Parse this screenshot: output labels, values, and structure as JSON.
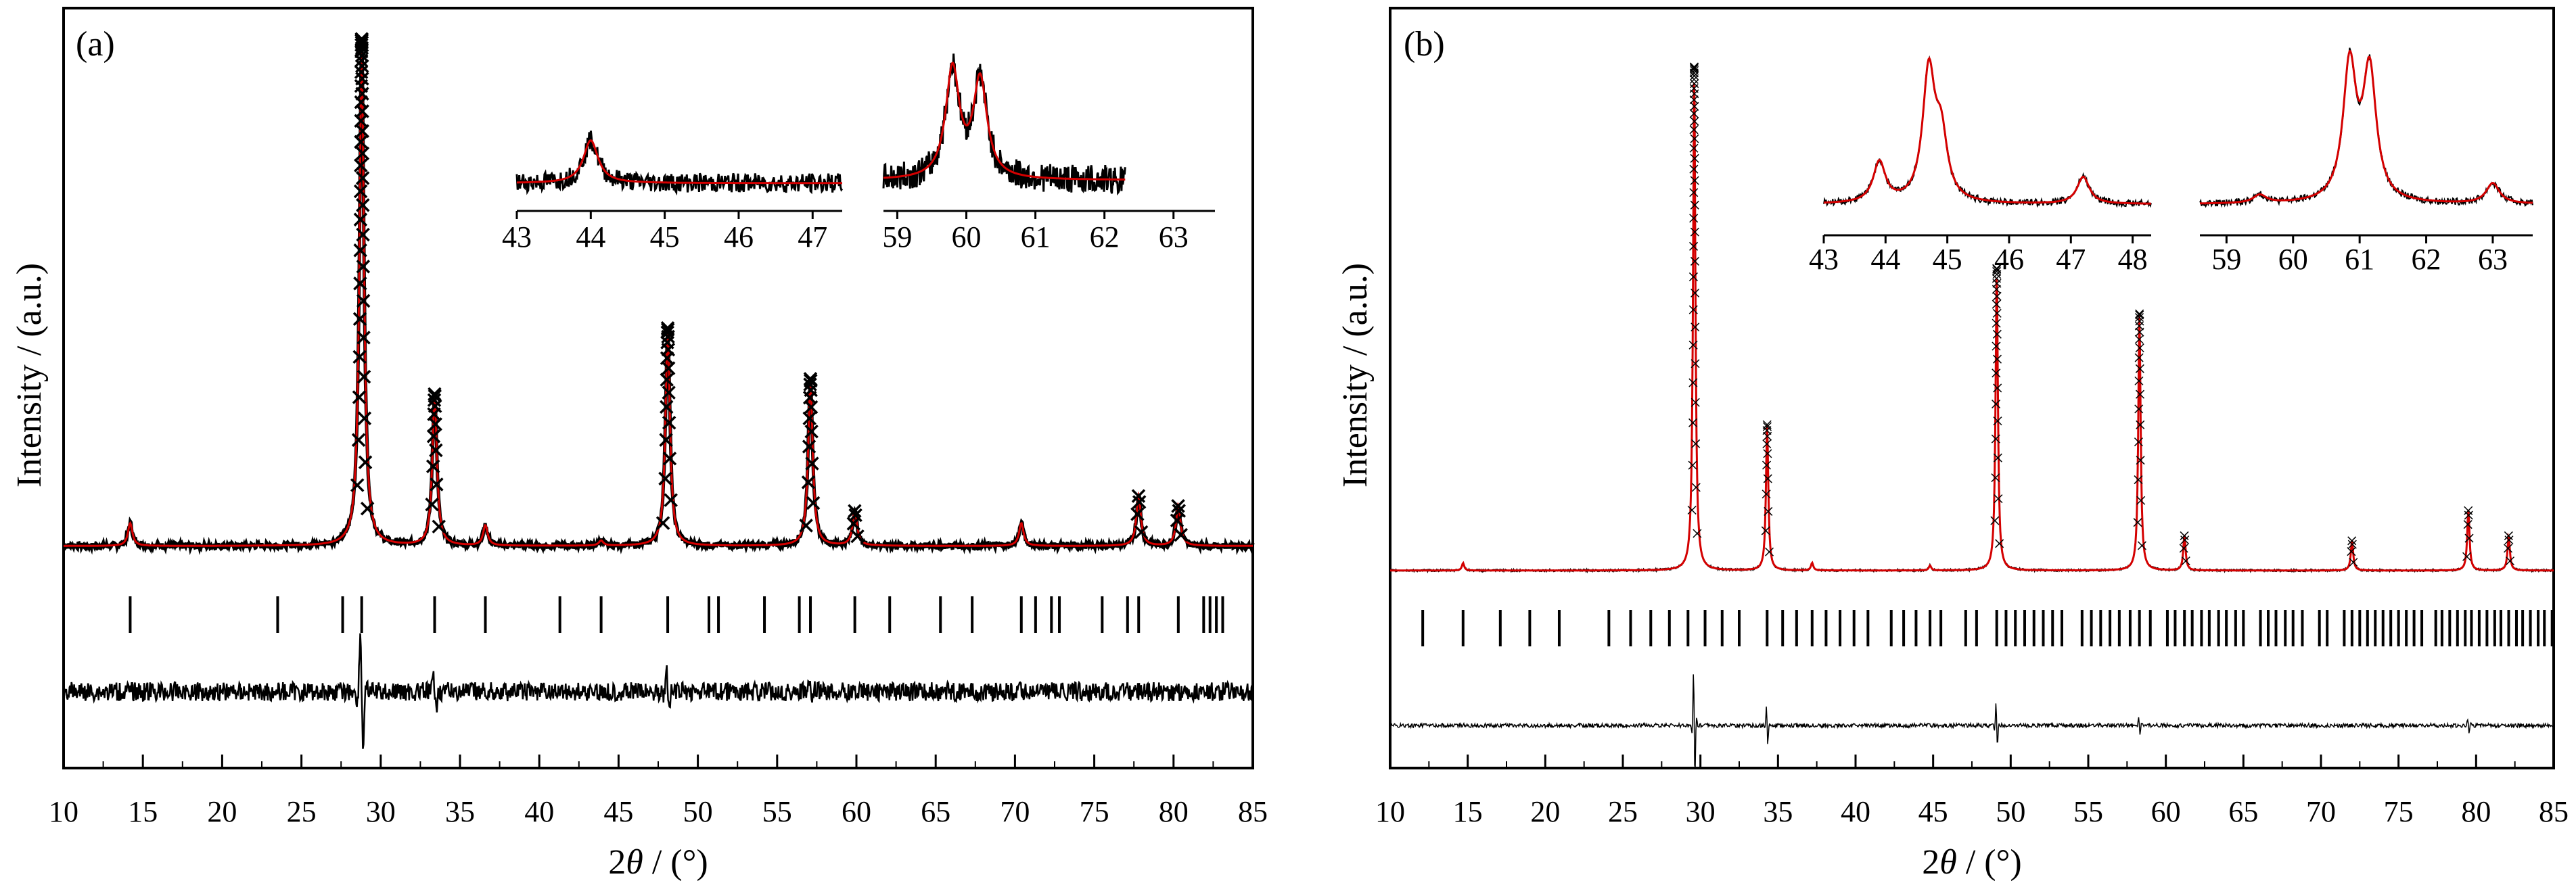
{
  "figure": {
    "panels": [
      {
        "label": "(a)",
        "xlabel_prefix": "2",
        "xlabel_theta": "θ",
        "xlabel_suffix": " / (°)",
        "ylabel": "Intensity / (a.u.)"
      },
      {
        "label": "(b)",
        "xlabel_prefix": "2",
        "xlabel_theta": "θ",
        "xlabel_suffix": " / (°)",
        "ylabel": "Intensity / (a.u.)"
      }
    ]
  },
  "colors": {
    "observed": "#000000",
    "calculated": "#d40000",
    "difference": "#000000",
    "bragg": "#000000"
  },
  "chart_data": [
    {
      "type": "line",
      "panel": "(a)",
      "xlabel": "2θ / (°)",
      "ylabel": "Intensity / (a.u.)",
      "xlim": [
        10,
        85
      ],
      "x_ticks": [
        10,
        15,
        20,
        25,
        30,
        35,
        40,
        45,
        50,
        55,
        60,
        65,
        70,
        75,
        80,
        85
      ],
      "observed_marker": "x",
      "background": 0.03,
      "peaks": [
        {
          "x": 14.2,
          "y": 0.045
        },
        {
          "x": 28.8,
          "y": 1.0
        },
        {
          "x": 33.4,
          "y": 0.3
        },
        {
          "x": 36.6,
          "y": 0.04
        },
        {
          "x": 43.9,
          "y": 0.01
        },
        {
          "x": 48.1,
          "y": 0.43
        },
        {
          "x": 57.1,
          "y": 0.33
        },
        {
          "x": 59.9,
          "y": 0.07
        },
        {
          "x": 70.4,
          "y": 0.045
        },
        {
          "x": 77.8,
          "y": 0.1
        },
        {
          "x": 80.3,
          "y": 0.08
        }
      ],
      "bragg_positions": [
        14.2,
        23.5,
        27.6,
        28.8,
        33.4,
        36.6,
        41.3,
        43.9,
        48.1,
        50.7,
        51.3,
        54.2,
        56.4,
        57.1,
        59.9,
        62.1,
        65.3,
        67.3,
        70.4,
        71.3,
        72.3,
        72.8,
        75.5,
        77.1,
        77.8,
        80.3,
        81.9,
        82.3,
        82.7,
        83.1
      ],
      "difference_spikes": [
        {
          "x": 28.8,
          "amp": 1.0
        },
        {
          "x": 33.4,
          "amp": 0.3
        },
        {
          "x": 48.1,
          "amp": 0.35
        },
        {
          "x": 57.1,
          "amp": 0.15
        }
      ],
      "insets": [
        {
          "xlim": [
            43,
            47.4
          ],
          "x_ticks": [
            43,
            44,
            45,
            46,
            47
          ],
          "peaks": [
            {
              "x": 44.0,
              "y": 0.55
            }
          ]
        },
        {
          "xlim": [
            58.8,
            63.6
          ],
          "x_ticks": [
            59,
            60,
            61,
            62,
            63
          ],
          "peaks": [
            {
              "x": 59.8,
              "y": 0.95
            },
            {
              "x": 60.2,
              "y": 0.85
            }
          ],
          "data_end": 62.3
        }
      ]
    },
    {
      "type": "line",
      "panel": "(b)",
      "xlabel": "2θ / (°)",
      "ylabel": "Intensity / (a.u.)",
      "xlim": [
        10,
        85
      ],
      "x_ticks": [
        10,
        15,
        20,
        25,
        30,
        35,
        40,
        45,
        50,
        55,
        60,
        65,
        70,
        75,
        80,
        85
      ],
      "observed_marker": "x",
      "background": 0.015,
      "peaks": [
        {
          "x": 14.7,
          "y": 0.015
        },
        {
          "x": 29.6,
          "y": 1.0
        },
        {
          "x": 34.3,
          "y": 0.29
        },
        {
          "x": 37.2,
          "y": 0.015
        },
        {
          "x": 44.8,
          "y": 0.01
        },
        {
          "x": 49.1,
          "y": 0.6
        },
        {
          "x": 58.3,
          "y": 0.51
        },
        {
          "x": 61.2,
          "y": 0.07
        },
        {
          "x": 72.0,
          "y": 0.06
        },
        {
          "x": 79.5,
          "y": 0.12
        },
        {
          "x": 82.1,
          "y": 0.07
        }
      ],
      "bragg_positions": [
        12.1,
        14.7,
        17.1,
        19.0,
        20.9,
        24.1,
        25.5,
        26.8,
        28.0,
        29.2,
        30.3,
        31.4,
        32.5,
        34.3,
        35.3,
        36.2,
        37.2,
        38.1,
        39.0,
        39.9,
        40.8,
        42.3,
        43.1,
        43.9,
        44.8,
        45.5,
        47.1,
        47.8,
        49.1,
        49.7,
        50.3,
        50.9,
        51.5,
        52.1,
        52.7,
        53.3,
        54.6,
        55.2,
        55.8,
        56.4,
        57.0,
        57.7,
        58.3,
        59.0,
        60.1,
        60.6,
        61.2,
        61.7,
        62.3,
        62.8,
        63.4,
        63.9,
        64.5,
        65.0,
        66.1,
        66.6,
        67.1,
        67.7,
        68.2,
        68.8,
        69.9,
        70.4,
        71.5,
        72.0,
        72.5,
        73.0,
        73.5,
        74.0,
        74.5,
        75.0,
        75.5,
        76.0,
        76.5,
        77.4,
        77.8,
        78.3,
        78.8,
        79.3,
        79.7,
        80.2,
        80.7,
        81.2,
        81.6,
        82.1,
        82.6,
        83.0,
        83.5,
        84.0,
        84.4,
        84.9
      ],
      "difference_spikes": [
        {
          "x": 29.6,
          "amp": 1.0
        },
        {
          "x": 34.3,
          "amp": 0.35
        },
        {
          "x": 49.1,
          "amp": 0.4
        },
        {
          "x": 58.3,
          "amp": 0.15
        },
        {
          "x": 79.5,
          "amp": 0.12
        }
      ],
      "insets": [
        {
          "xlim": [
            43,
            48.3
          ],
          "x_ticks": [
            43,
            44,
            45,
            46,
            47,
            48
          ],
          "peaks": [
            {
              "x": 43.9,
              "y": 0.3
            },
            {
              "x": 44.7,
              "y": 0.95
            },
            {
              "x": 44.9,
              "y": 0.45
            },
            {
              "x": 47.2,
              "y": 0.2
            }
          ]
        },
        {
          "xlim": [
            58.6,
            63.6
          ],
          "x_ticks": [
            59,
            60,
            61,
            62,
            63
          ],
          "peaks": [
            {
              "x": 59.5,
              "y": 0.06
            },
            {
              "x": 60.85,
              "y": 1.0
            },
            {
              "x": 61.15,
              "y": 0.95
            },
            {
              "x": 63.0,
              "y": 0.15
            }
          ]
        }
      ]
    }
  ]
}
